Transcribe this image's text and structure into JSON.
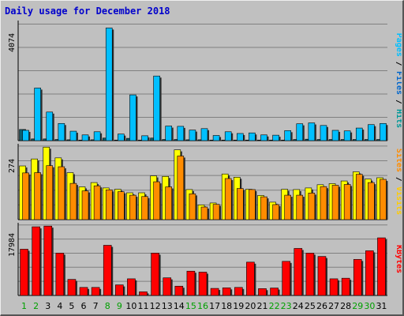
{
  "chart_data": {
    "type": "bar",
    "title": "Daily usage for December 2018",
    "categories": [
      "1",
      "2",
      "3",
      "4",
      "5",
      "6",
      "7",
      "8",
      "9",
      "10",
      "11",
      "12",
      "13",
      "14",
      "15",
      "16",
      "17",
      "18",
      "19",
      "20",
      "21",
      "22",
      "23",
      "24",
      "25",
      "26",
      "27",
      "28",
      "29",
      "30",
      "31"
    ],
    "weekend_days": [
      "1",
      "2",
      "8",
      "9",
      "15",
      "16",
      "22",
      "23",
      "29",
      "30"
    ],
    "grid": true,
    "panels": [
      {
        "max_label": "4074",
        "ylim": [
          0,
          4074
        ],
        "side_label": [
          "Pages",
          "Files",
          "Hits"
        ],
        "series": [
          {
            "name": "Pages",
            "color": "#0d5e6e",
            "values": [
              390,
              60,
              60,
              40,
              30,
              20,
              30,
              90,
              20,
              80,
              20,
              90,
              40,
              40,
              30,
              30,
              20,
              20,
              20,
              20,
              20,
              20,
              20,
              40,
              50,
              40,
              40,
              40,
              40,
              40,
              40
            ]
          },
          {
            "name": "Hits",
            "color": "#00bfff",
            "values": [
              360,
              1840,
              1000,
              600,
              330,
              200,
              310,
              3940,
              230,
              1600,
              170,
              2260,
              510,
              500,
              370,
              420,
              180,
              310,
              250,
              270,
              200,
              190,
              350,
              590,
              620,
              530,
              360,
              340,
              440,
              560,
              600
            ]
          }
        ]
      },
      {
        "max_label": "274",
        "ylim": [
          0,
          274
        ],
        "side_label": [
          "Sites",
          "Visits"
        ],
        "series": [
          {
            "name": "Visits",
            "color": "#ffff00",
            "values": [
              200,
              226,
              270,
              230,
              175,
              122,
              138,
              118,
              113,
              100,
              100,
              163,
              161,
              260,
              112,
              55,
              62,
              170,
              158,
              113,
              90,
              65,
              113,
              112,
              118,
              130,
              134,
              144,
              178,
              151,
              156
            ]
          },
          {
            "name": "Sites",
            "color": "#ff8c00",
            "values": [
              174,
              175,
              201,
              197,
              135,
              107,
              126,
              111,
              104,
              91,
              86,
              141,
              122,
              237,
              96,
              47,
              57,
              153,
              116,
              112,
              85,
              56,
              91,
              91,
              99,
              123,
              128,
              131,
              169,
              138,
              150
            ]
          }
        ]
      },
      {
        "max_label": "17984",
        "ylim": [
          0,
          17984
        ],
        "side_label": [
          "KBytes"
        ],
        "series": [
          {
            "name": "KBytes",
            "color": "#ff0000",
            "values": [
              11800,
              17520,
              17700,
              10800,
              4100,
              2050,
              2050,
              12800,
              2700,
              4250,
              930,
              10800,
              4500,
              2370,
              6200,
              5950,
              1800,
              1950,
              2050,
              8500,
              1750,
              1900,
              8700,
              12000,
              10800,
              9950,
              4250,
              4400,
              9200,
              11400,
              14700
            ]
          }
        ]
      }
    ]
  },
  "colors": {
    "background": "#c0c0c0",
    "plot_area": "#c0c0c0",
    "grid": "#808080",
    "title": "#0000cc",
    "separator": "#000000",
    "weekend_label": "#00a000",
    "weekday_label": "#000000"
  }
}
